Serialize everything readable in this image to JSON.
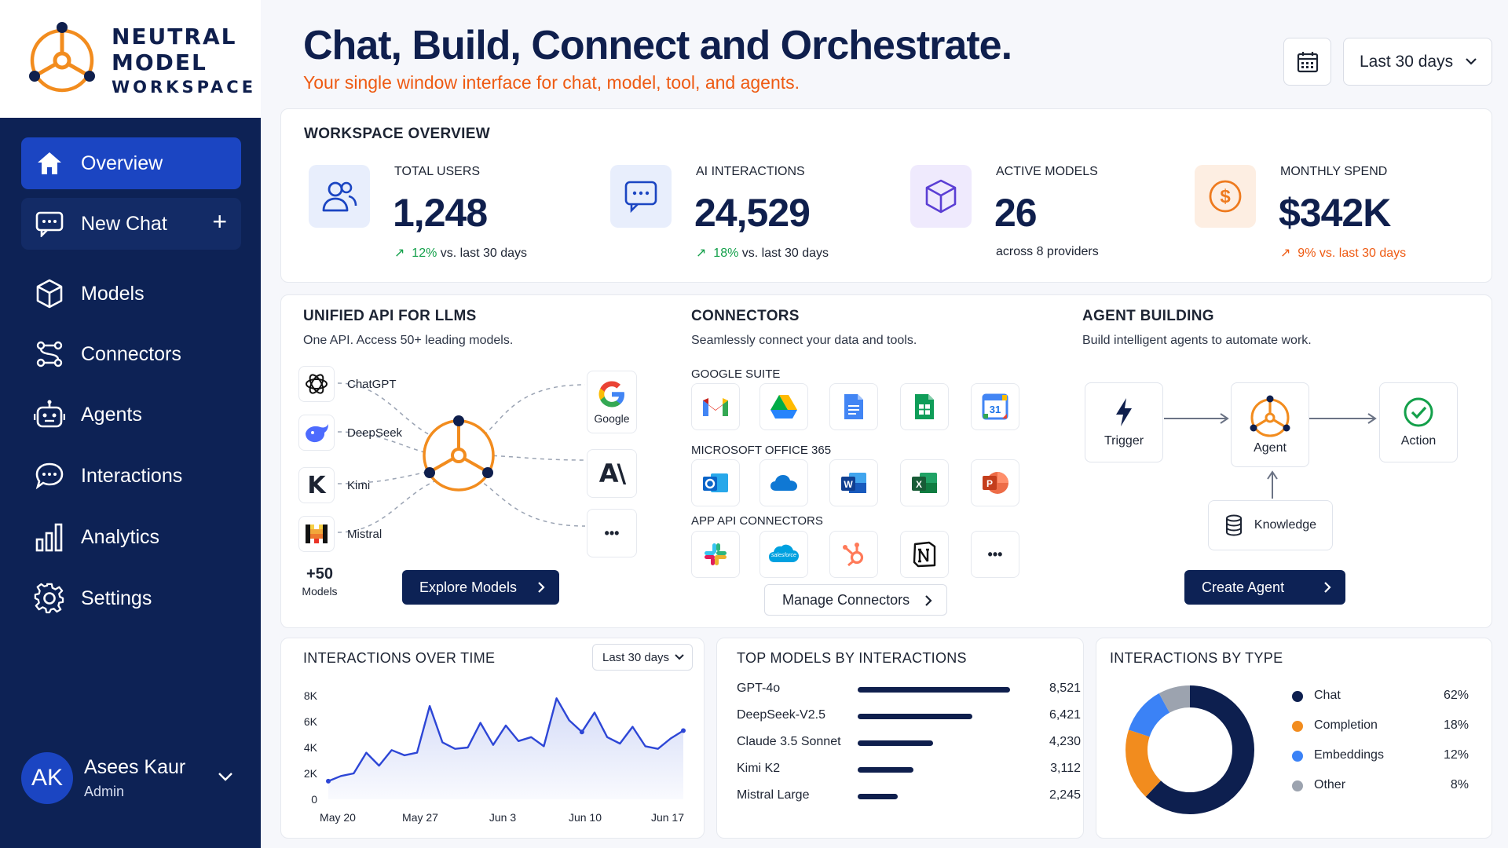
{
  "brand": {
    "line1": "NEUTRAL",
    "line2": "MODEL",
    "line3": "WORKSPACE",
    "logo_icon": "tri-node-hub-icon",
    "accent": "#f28c1e"
  },
  "sidebar": {
    "items": [
      {
        "label": "Overview",
        "icon": "home-icon"
      },
      {
        "label": "New Chat",
        "icon": "chat-icon",
        "action": "+"
      },
      {
        "label": "Models",
        "icon": "cube-icon"
      },
      {
        "label": "Connectors",
        "icon": "connectors-icon"
      },
      {
        "label": "Agents",
        "icon": "robot-icon"
      },
      {
        "label": "Interactions",
        "icon": "speech-bubble-icon"
      },
      {
        "label": "Analytics",
        "icon": "bar-chart-icon"
      },
      {
        "label": "Settings",
        "icon": "gear-icon"
      }
    ],
    "user": {
      "initials": "AK",
      "name": "Asees Kaur",
      "role": "Admin"
    }
  },
  "header": {
    "title": "Chat, Build, Connect and Orchestrate.",
    "subtitle": "Your single window interface for chat, model, tool, and agents.",
    "date_range": "Last 30 days"
  },
  "overview": {
    "title": "WORKSPACE OVERVIEW",
    "kpis": [
      {
        "label": "TOTAL USERS",
        "value": "1,248",
        "delta": "12%",
        "delta_text": " vs. last 30 days",
        "icon": "users-icon"
      },
      {
        "label": "AI INTERACTIONS",
        "value": "24,529",
        "delta": "18%",
        "delta_text": " vs. last 30 days",
        "icon": "chat-bubble-icon"
      },
      {
        "label": "ACTIVE MODELS",
        "value": "26",
        "note": "across 8 providers",
        "icon": "cube-icon"
      },
      {
        "label": "MONTHLY SPEND",
        "value": "$342K",
        "delta": "9% vs. last 30 days",
        "icon": "dollar-coin-icon"
      }
    ]
  },
  "unified_api": {
    "title": "UNIFIED API FOR LLMS",
    "subtitle": "One API. Access 50+ leading models.",
    "models": [
      "ChatGPT",
      "DeepSeek",
      "Kimi",
      "Mistral"
    ],
    "more_count": "+50",
    "more_label": "Models",
    "providers": [
      "Google",
      "A\\"
    ],
    "more_providers": "•••",
    "button": "Explore Models"
  },
  "connectors": {
    "title": "CONNECTORS",
    "subtitle": "Seamlessly connect your data and tools.",
    "groups": [
      {
        "label": "GOOGLE SUITE",
        "apps": [
          "gmail-icon",
          "google-drive-icon",
          "google-docs-icon",
          "google-sheets-icon",
          "google-calendar-icon"
        ]
      },
      {
        "label": "MICROSOFT OFFICE 365",
        "apps": [
          "outlook-icon",
          "onedrive-icon",
          "word-icon",
          "excel-icon",
          "powerpoint-icon"
        ]
      },
      {
        "label": "APP API CONNECTORS",
        "apps": [
          "slack-icon",
          "salesforce-icon",
          "hubspot-icon",
          "notion-icon",
          "more-icon"
        ]
      }
    ],
    "calendar_day": "31",
    "salesforce_text": "salesforce",
    "more_apps": "•••",
    "button": "Manage Connectors"
  },
  "agent_building": {
    "title": "AGENT BUILDING",
    "subtitle": "Build intelligent agents to automate work.",
    "nodes": {
      "trigger": "Trigger",
      "agent": "Agent",
      "action": "Action",
      "knowledge": "Knowledge"
    },
    "button": "Create Agent"
  },
  "charts": {
    "interactions_over_time": {
      "title": "INTERACTIONS OVER TIME",
      "dropdown": "Last 30 days",
      "chart_data": {
        "type": "area",
        "title": "INTERACTIONS OVER TIME",
        "x_ticks": [
          "May 20",
          "May 27",
          "Jun 3",
          "Jun 10",
          "Jun 17"
        ],
        "y_ticks": [
          "8K",
          "6K",
          "4K",
          "2K",
          "0"
        ],
        "ylim": [
          0,
          8000
        ],
        "values": [
          1400,
          1800,
          2000,
          3600,
          2600,
          3800,
          3400,
          3600,
          7200,
          4400,
          3900,
          4000,
          5900,
          4200,
          5700,
          4500,
          4800,
          4100,
          7800,
          6100,
          5200,
          6700,
          4800,
          4300,
          5600,
          4100,
          3900,
          4700,
          5300
        ]
      }
    },
    "top_models": {
      "title": "TOP MODELS BY INTERACTIONS",
      "chart_data": {
        "type": "bar",
        "title": "TOP MODELS BY INTERACTIONS",
        "categories": [
          "GPT-4o",
          "DeepSeek-V2.5",
          "Claude 3.5 Sonnet",
          "Kimi K2",
          "Mistral Large"
        ],
        "values": [
          8521,
          6421,
          4230,
          3112,
          2245
        ],
        "labels": [
          "8,521",
          "6,421",
          "4,230",
          "3,112",
          "2,245"
        ]
      }
    },
    "interactions_by_type": {
      "title": "INTERACTIONS BY TYPE",
      "chart_data": {
        "type": "pie",
        "title": "INTERACTIONS BY TYPE",
        "categories": [
          "Chat",
          "Completion",
          "Embeddings",
          "Other"
        ],
        "values": [
          62,
          18,
          12,
          8
        ],
        "labels": [
          "62%",
          "18%",
          "12%",
          "8%"
        ],
        "colors": [
          "#0d1f4f",
          "#f28c1e",
          "#3b82f6",
          "#9ca3af"
        ]
      }
    }
  }
}
